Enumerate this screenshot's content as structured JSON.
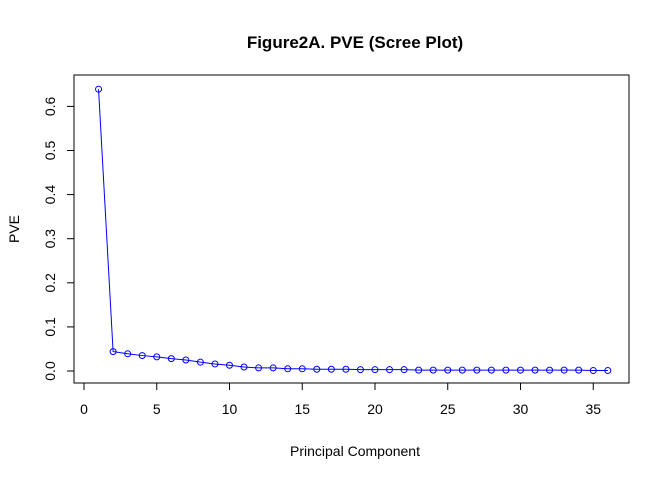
{
  "chart_data": {
    "type": "line",
    "title": "Figure2A. PVE (Scree Plot)",
    "xlabel": "Principal Component",
    "ylabel": "PVE",
    "xlim": [
      0,
      37
    ],
    "ylim": [
      0,
      0.65
    ],
    "x_ticks": [
      0,
      5,
      10,
      15,
      20,
      25,
      30,
      35
    ],
    "y_ticks": [
      0.0,
      0.1,
      0.2,
      0.3,
      0.4,
      0.5,
      0.6
    ],
    "x_tick_labels": [
      "0",
      "5",
      "10",
      "15",
      "20",
      "25",
      "30",
      "35"
    ],
    "y_tick_labels": [
      "0.0",
      "0.1",
      "0.2",
      "0.3",
      "0.4",
      "0.5",
      "0.6"
    ],
    "grid": false,
    "legend": "none",
    "series": [
      {
        "color": "#0000ff",
        "marker": "open-circle",
        "x": [
          1,
          2,
          3,
          4,
          5,
          6,
          7,
          8,
          9,
          10,
          11,
          12,
          13,
          14,
          15,
          16,
          17,
          18,
          19,
          20,
          21,
          22,
          23,
          24,
          25,
          26,
          27,
          28,
          29,
          30,
          31,
          32,
          33,
          34,
          35,
          36
        ],
        "values": [
          0.639,
          0.044,
          0.039,
          0.035,
          0.032,
          0.028,
          0.025,
          0.02,
          0.016,
          0.013,
          0.009,
          0.007,
          0.007,
          0.005,
          0.005,
          0.004,
          0.004,
          0.004,
          0.003,
          0.003,
          0.003,
          0.003,
          0.002,
          0.002,
          0.002,
          0.002,
          0.002,
          0.002,
          0.002,
          0.002,
          0.002,
          0.002,
          0.002,
          0.002,
          0.001,
          0.001
        ]
      }
    ]
  }
}
